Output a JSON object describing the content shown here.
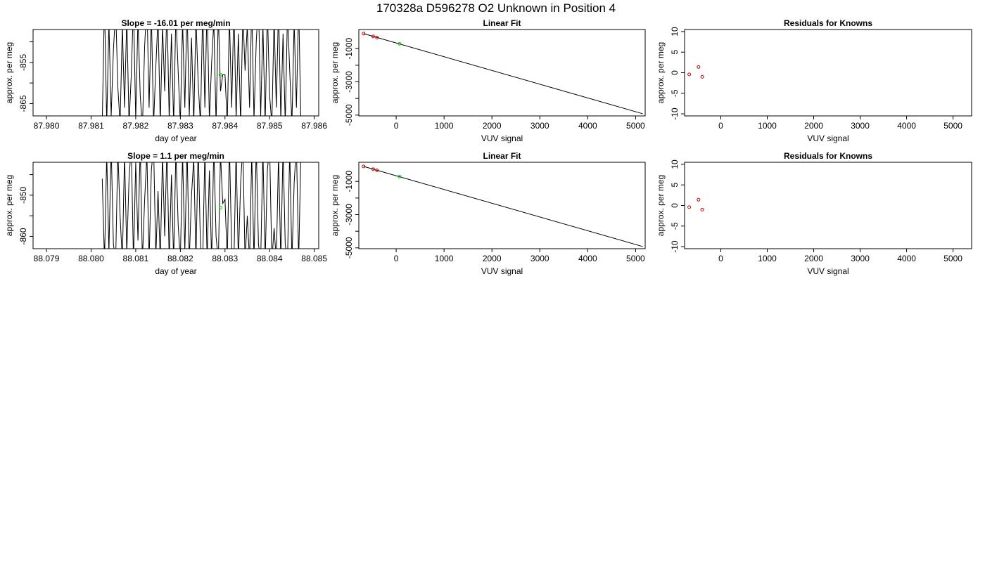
{
  "figure": {
    "title": "170328a      D596278   O2 Unknown in Position  4"
  },
  "colors": {
    "line": "#000000",
    "known_points": "#cc0000",
    "unknown_point": "#00cc00"
  },
  "chart_data": [
    {
      "type": "line",
      "title": "Slope =  -16.01  per meg/min",
      "xlabel": "day of year",
      "ylabel": "approx. per meg",
      "xlim": [
        87.9797,
        87.9861
      ],
      "ylim": [
        -868,
        -847
      ],
      "xticks": [
        87.98,
        87.981,
        87.982,
        87.983,
        87.984,
        87.985,
        87.986
      ],
      "xtick_labels": [
        "87.980",
        "87.981",
        "87.982",
        "87.983",
        "87.984",
        "87.985",
        "87.986"
      ],
      "yticks": [
        -865,
        -860,
        -855,
        -850
      ],
      "ytick_labels": [
        "-865",
        "",
        "-855",
        ""
      ],
      "series": [
        {
          "style": "line",
          "x": [
            87.98125,
            87.9813,
            87.98135,
            87.9814,
            87.98145,
            87.9815,
            87.98155,
            87.9816,
            87.98165,
            87.9817,
            87.98175,
            87.9818,
            87.98185,
            87.9819,
            87.98195,
            87.982,
            87.98205,
            87.9821,
            87.98215,
            87.9822,
            87.98225,
            87.9823,
            87.98235,
            87.9824,
            87.98245,
            87.9825,
            87.98255,
            87.9826,
            87.98265,
            87.9827,
            87.98275,
            87.9828,
            87.98285,
            87.9829,
            87.98295,
            87.983,
            87.98305,
            87.9831,
            87.98315,
            87.9832,
            87.98325,
            87.9833,
            87.98335,
            87.9834,
            87.98345,
            87.9835,
            87.98355,
            87.9836,
            87.98365,
            87.9837,
            87.98375,
            87.9838,
            87.98385,
            87.9839,
            87.98395,
            87.984,
            87.98405,
            87.9841,
            87.98415,
            87.9842,
            87.98425,
            87.9843,
            87.98435,
            87.9844,
            87.98445,
            87.9845,
            87.98455,
            87.9846,
            87.98465,
            87.9847,
            87.98475,
            87.9848,
            87.98485,
            87.9849,
            87.98495,
            87.985,
            87.98505,
            87.9851,
            87.98515,
            87.9852,
            87.98525,
            87.9853,
            87.98535,
            87.9854,
            87.98545,
            87.9855,
            87.98555,
            87.9856,
            87.98565,
            87.9857
          ],
          "values": [
            -870,
            -840,
            -870,
            -845,
            -868,
            -852,
            -842,
            -861,
            -870,
            -846,
            -866,
            -844,
            -870,
            -858,
            -841,
            -869,
            -844,
            -863,
            -871,
            -851,
            -840,
            -866,
            -843,
            -870,
            -856,
            -844,
            -870,
            -846,
            -862,
            -841,
            -869,
            -848,
            -870,
            -843,
            -857,
            -870,
            -845,
            -866,
            -841,
            -868,
            -849,
            -870,
            -844,
            -860,
            -870,
            -842,
            -866,
            -840,
            -869,
            -855,
            -845,
            -870,
            -843,
            -862,
            -858,
            -858,
            -870,
            -844,
            -866,
            -841,
            -869,
            -848,
            -870,
            -843,
            -857,
            -846,
            -866,
            -841,
            -869,
            -850,
            -840,
            -868,
            -846,
            -870,
            -842,
            -863,
            -870,
            -844,
            -866,
            -841,
            -869,
            -848,
            -870,
            -843,
            -857,
            -870,
            -845,
            -866,
            -841,
            -869
          ]
        },
        {
          "style": "point",
          "color": "unknown",
          "x": [
            87.9839
          ],
          "values": [
            -858
          ]
        }
      ]
    },
    {
      "type": "scatter",
      "title": "Linear Fit",
      "xlabel": "VUV signal",
      "ylabel": "approx. per meg",
      "xlim": [
        -780,
        5200
      ],
      "ylim": [
        -5050,
        150
      ],
      "xticks": [
        0,
        1000,
        2000,
        3000,
        4000,
        5000
      ],
      "xtick_labels": [
        "0",
        "1000",
        "2000",
        "3000",
        "4000",
        "5000"
      ],
      "yticks": [
        -5000,
        -4000,
        -3000,
        -2000,
        -1000
      ],
      "ytick_labels": [
        "-5000",
        "",
        "-3000",
        "",
        "-1000"
      ],
      "fit_line": {
        "x": [
          -680,
          5150
        ],
        "values": [
          -100,
          -4920
        ]
      },
      "series": [
        {
          "name": "knowns",
          "color": "known",
          "x": [
            -680,
            -480,
            -400
          ],
          "values": [
            -100,
            -265,
            -335
          ]
        },
        {
          "name": "unknown",
          "color": "unknown",
          "x": [
            70
          ],
          "values": [
            -710
          ]
        }
      ]
    },
    {
      "type": "scatter",
      "title": "Residuals for Knowns",
      "xlabel": "VUV signal",
      "ylabel": "approx. per meg",
      "xlim": [
        -780,
        5400
      ],
      "ylim": [
        -10.5,
        10.5
      ],
      "xticks": [
        0,
        1000,
        2000,
        3000,
        4000,
        5000
      ],
      "xtick_labels": [
        "0",
        "1000",
        "2000",
        "3000",
        "4000",
        "5000"
      ],
      "yticks": [
        -10,
        -5,
        0,
        5,
        10
      ],
      "ytick_labels": [
        "-10",
        "-5",
        "0",
        "5",
        "10"
      ],
      "series": [
        {
          "name": "knowns",
          "color": "known",
          "x": [
            -680,
            -480,
            -400
          ],
          "values": [
            -0.4,
            1.4,
            -1.0
          ]
        }
      ]
    },
    {
      "type": "line",
      "title": "Slope =  1.1  per meg/min",
      "xlabel": "day of year",
      "ylabel": "approx. per meg",
      "xlim": [
        88.0787,
        88.0851
      ],
      "ylim": [
        -863,
        -842
      ],
      "xticks": [
        88.079,
        88.08,
        88.081,
        88.082,
        88.083,
        88.084,
        88.085
      ],
      "xtick_labels": [
        "88.079",
        "88.080",
        "88.081",
        "88.082",
        "88.083",
        "88.084",
        "88.085"
      ],
      "yticks": [
        -860,
        -855,
        -850,
        -845
      ],
      "ytick_labels": [
        "-860",
        "",
        "-850",
        ""
      ],
      "series": [
        {
          "style": "line",
          "x": [
            88.08025,
            88.0803,
            88.08035,
            88.0804,
            88.08045,
            88.0805,
            88.08055,
            88.0806,
            88.08065,
            88.0807,
            88.08075,
            88.0808,
            88.08085,
            88.0809,
            88.08095,
            88.081,
            88.08105,
            88.0811,
            88.08115,
            88.0812,
            88.08125,
            88.0813,
            88.08135,
            88.0814,
            88.08145,
            88.0815,
            88.08155,
            88.0816,
            88.08165,
            88.0817,
            88.08175,
            88.0818,
            88.08185,
            88.0819,
            88.08195,
            88.082,
            88.08205,
            88.0821,
            88.08215,
            88.0822,
            88.08225,
            88.0823,
            88.08235,
            88.0824,
            88.08245,
            88.0825,
            88.08255,
            88.0826,
            88.08265,
            88.0827,
            88.08275,
            88.0828,
            88.08285,
            88.0829,
            88.08295,
            88.083,
            88.08305,
            88.0831,
            88.08315,
            88.0832,
            88.08325,
            88.0833,
            88.08335,
            88.0834,
            88.08345,
            88.0835,
            88.08355,
            88.0836,
            88.08365,
            88.0837,
            88.08375,
            88.0838,
            88.08385,
            88.0839,
            88.08395,
            88.084,
            88.08405,
            88.0841,
            88.08415,
            88.0842,
            88.08425,
            88.0843,
            88.08435,
            88.0844,
            88.08445,
            88.0845,
            88.08455,
            88.0846,
            88.08465,
            88.0847
          ],
          "values": [
            -846,
            -866,
            -840,
            -864,
            -838,
            -862,
            -866,
            -839,
            -855,
            -866,
            -840,
            -864,
            -846,
            -838,
            -866,
            -842,
            -861,
            -838,
            -866,
            -851,
            -840,
            -866,
            -844,
            -838,
            -865,
            -849,
            -866,
            -840,
            -860,
            -838,
            -866,
            -845,
            -866,
            -839,
            -857,
            -866,
            -840,
            -864,
            -838,
            -866,
            -850,
            -841,
            -866,
            -838,
            -862,
            -866,
            -839,
            -866,
            -844,
            -866,
            -838,
            -860,
            -866,
            -840,
            -852,
            -851,
            -866,
            -838,
            -863,
            -866,
            -839,
            -866,
            -847,
            -838,
            -866,
            -855,
            -866,
            -840,
            -866,
            -838,
            -862,
            -866,
            -839,
            -866,
            -844,
            -838,
            -866,
            -858,
            -866,
            -840,
            -866,
            -838,
            -862,
            -866,
            -839,
            -866,
            -847,
            -838,
            -866,
            -840
          ]
        },
        {
          "style": "point",
          "color": "unknown",
          "x": [
            88.0829
          ],
          "values": [
            -853
          ]
        }
      ]
    },
    {
      "type": "scatter",
      "title": "Linear Fit",
      "xlabel": "VUV signal",
      "ylabel": "approx. per meg",
      "xlim": [
        -780,
        5200
      ],
      "ylim": [
        -5050,
        150
      ],
      "xticks": [
        0,
        1000,
        2000,
        3000,
        4000,
        5000
      ],
      "xtick_labels": [
        "0",
        "1000",
        "2000",
        "3000",
        "4000",
        "5000"
      ],
      "yticks": [
        -5000,
        -4000,
        -3000,
        -2000,
        -1000
      ],
      "ytick_labels": [
        "-5000",
        "",
        "-3000",
        "",
        "-1000"
      ],
      "fit_line": {
        "x": [
          -680,
          5150
        ],
        "values": [
          -100,
          -4920
        ]
      },
      "series": [
        {
          "name": "knowns",
          "color": "known",
          "x": [
            -680,
            -480,
            -400
          ],
          "values": [
            -100,
            -265,
            -335
          ]
        },
        {
          "name": "unknown",
          "color": "unknown",
          "x": [
            70
          ],
          "values": [
            -710
          ]
        }
      ]
    },
    {
      "type": "scatter",
      "title": "Residuals for Knowns",
      "xlabel": "VUV signal",
      "ylabel": "approx. per meg",
      "xlim": [
        -780,
        5400
      ],
      "ylim": [
        -10.5,
        10.5
      ],
      "xticks": [
        0,
        1000,
        2000,
        3000,
        4000,
        5000
      ],
      "xtick_labels": [
        "0",
        "1000",
        "2000",
        "3000",
        "4000",
        "5000"
      ],
      "yticks": [
        -10,
        -5,
        0,
        5,
        10
      ],
      "ytick_labels": [
        "-10",
        "-5",
        "0",
        "5",
        "10"
      ],
      "series": [
        {
          "name": "knowns",
          "color": "known",
          "x": [
            -680,
            -480,
            -400
          ],
          "values": [
            -0.4,
            1.4,
            -1.0
          ]
        }
      ]
    }
  ]
}
